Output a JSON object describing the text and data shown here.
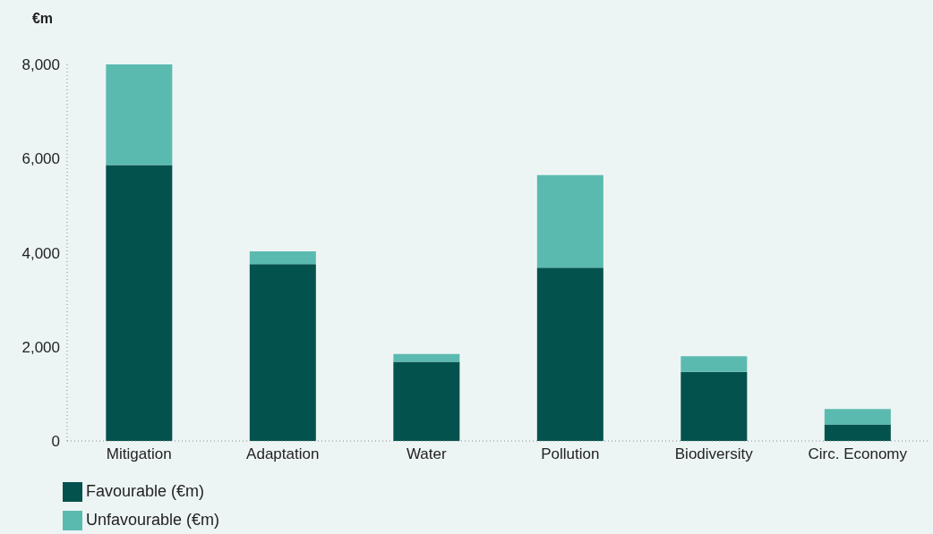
{
  "chart_data": {
    "type": "bar",
    "stacked": true,
    "ylabel": "€m",
    "categories": [
      "Mitigation",
      "Adaptation",
      "Water",
      "Pollution",
      "Biodiversity",
      "Circ. Economy"
    ],
    "series": [
      {
        "name": "Favourable (€m)",
        "color": "#03524e",
        "values": [
          5860,
          3760,
          1680,
          3680,
          1470,
          350
        ]
      },
      {
        "name": "Unfavourable (€m)",
        "color": "#5bbab0",
        "values": [
          2140,
          270,
          170,
          1970,
          330,
          330
        ]
      }
    ],
    "ylim": [
      0,
      8000
    ],
    "yticks": [
      0,
      {
        "value": 2000,
        "label": "2,000"
      },
      {
        "value": 4000,
        "label": "4,000"
      },
      {
        "value": 6000,
        "label": "6,000"
      },
      {
        "value": 8000,
        "label": "8,000"
      }
    ],
    "grid": false,
    "legend": "bottom left"
  }
}
